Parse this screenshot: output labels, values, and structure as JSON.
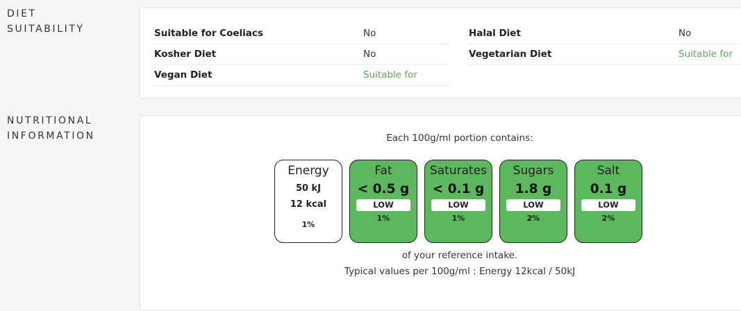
{
  "sections": {
    "diet": {
      "label_line1": "DIET",
      "label_line2": "SUITABILITY"
    },
    "nutrition": {
      "label_line1": "NUTRITIONAL",
      "label_line2": "INFORMATION"
    }
  },
  "diet": {
    "left": [
      {
        "key": "Suitable for Coeliacs",
        "value": "No"
      },
      {
        "key": "Kosher Diet",
        "value": "No"
      },
      {
        "key": "Vegan Diet",
        "value": "Suitable for"
      }
    ],
    "right": [
      {
        "key": "Halal Diet",
        "value": "No"
      },
      {
        "key": "Vegetarian Diet",
        "value": "Suitable for"
      }
    ]
  },
  "nutrition": {
    "portion_text": "Each 100g/ml portion contains:",
    "energy": {
      "name": "Energy",
      "kj": "50 kJ",
      "kcal": "12 kcal",
      "pct": "1%"
    },
    "tiles": [
      {
        "name": "Fat",
        "amount": "< 0.5 g",
        "level": "LOW",
        "pct": "1%"
      },
      {
        "name": "Saturates",
        "amount": "< 0.1 g",
        "level": "LOW",
        "pct": "1%"
      },
      {
        "name": "Sugars",
        "amount": "1.8 g",
        "level": "LOW",
        "pct": "2%"
      },
      {
        "name": "Salt",
        "amount": "0.1 g",
        "level": "LOW",
        "pct": "2%"
      }
    ],
    "reference_text": "of your reference intake.",
    "typical_text": "Typical values per 100g/ml : Energy 12kcal / 50kJ"
  },
  "colors": {
    "low": "#5cb85c",
    "suitable": "#5aa95a"
  }
}
